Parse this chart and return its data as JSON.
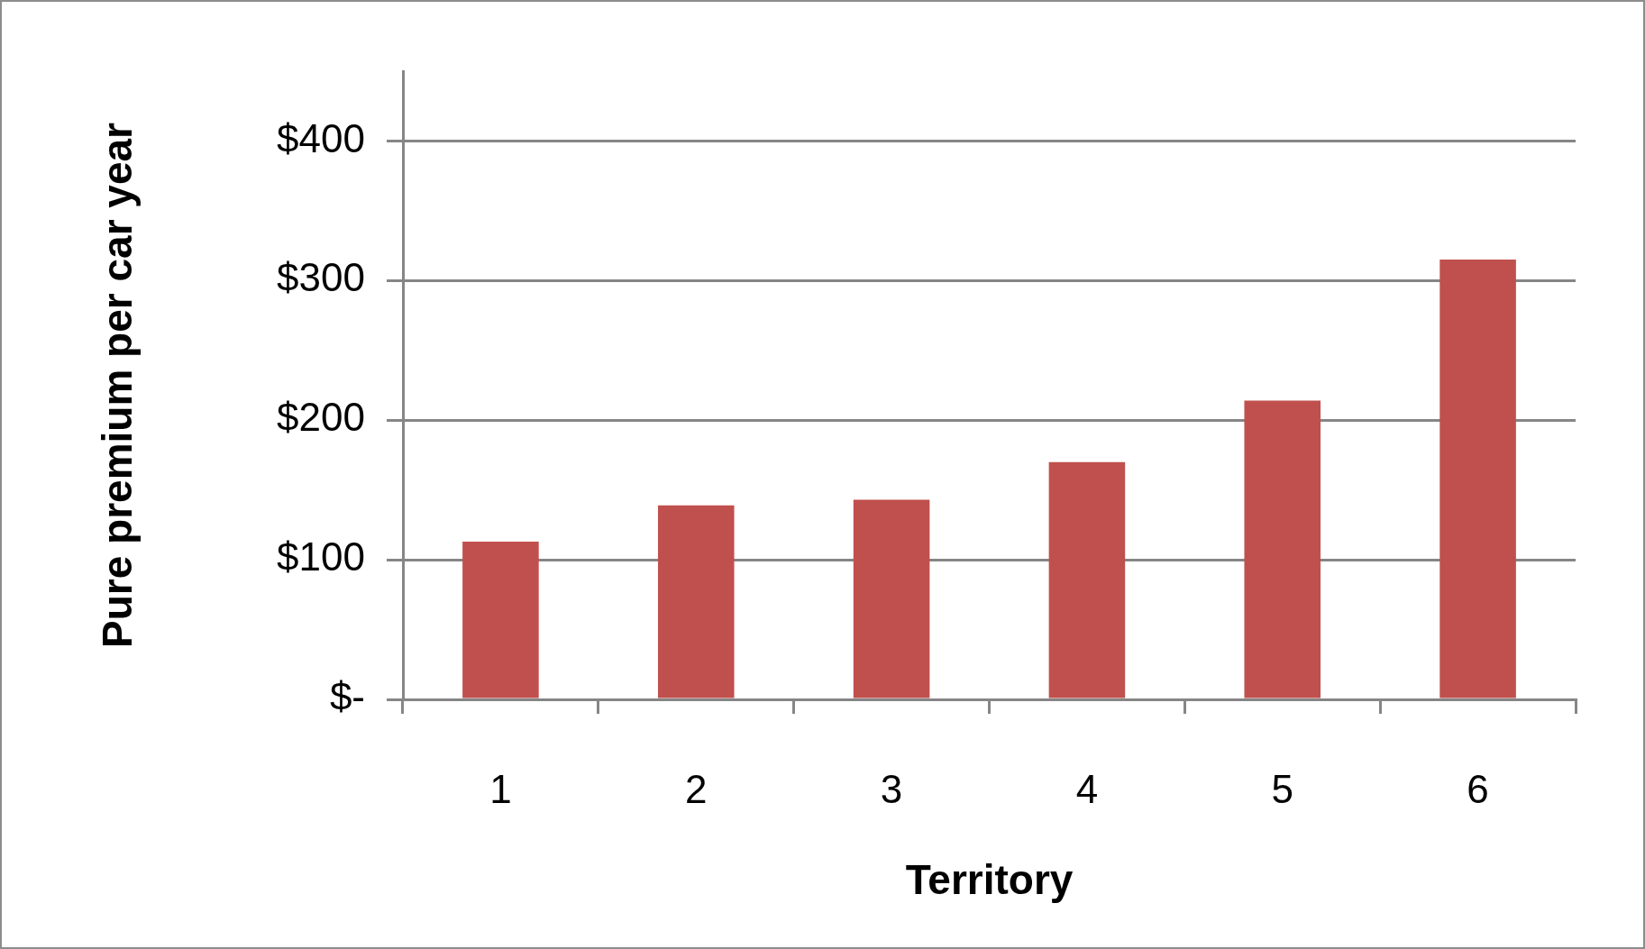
{
  "chart_data": {
    "type": "bar",
    "xlabel": "Territory",
    "ylabel": "Pure premium per car year",
    "categories": [
      "1",
      "2",
      "3",
      "4",
      "5",
      "6"
    ],
    "values": [
      113,
      139,
      143,
      170,
      214,
      315
    ],
    "color": "#c0504d",
    "ylim": [
      0,
      450
    ],
    "yticks": [
      {
        "value": 0,
        "label": "$-"
      },
      {
        "value": 100,
        "label": "$100"
      },
      {
        "value": 200,
        "label": "$200"
      },
      {
        "value": 300,
        "label": "$300"
      },
      {
        "value": 400,
        "label": "$400"
      }
    ],
    "grid": "y",
    "legend": false
  }
}
